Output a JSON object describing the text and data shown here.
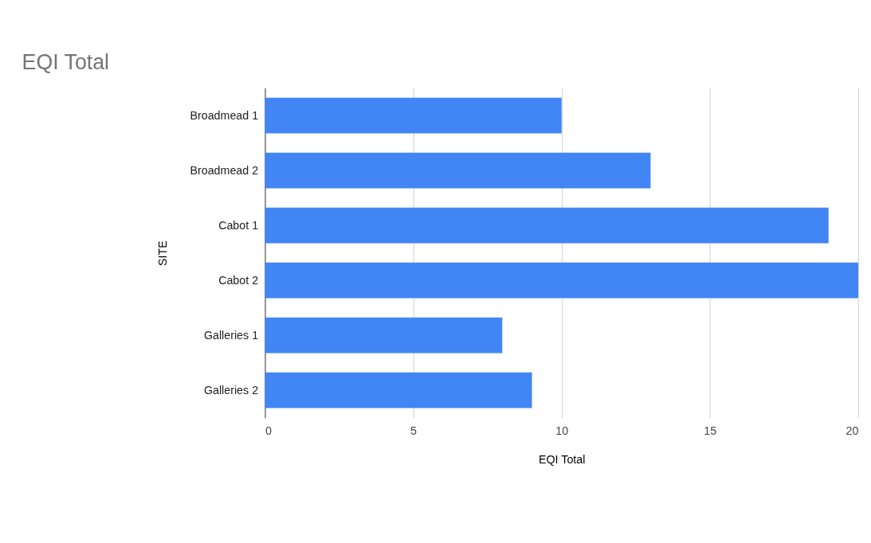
{
  "chart_data": {
    "type": "bar",
    "orientation": "horizontal",
    "title": "EQI Total",
    "xlabel": "EQI Total",
    "ylabel": "SITE",
    "categories": [
      "Broadmead 1",
      "Broadmead 2",
      "Cabot 1",
      "Cabot 2",
      "Galleries 1",
      "Galleries 2"
    ],
    "values": [
      10,
      13,
      19,
      20,
      8,
      9
    ],
    "color": "#4285f4",
    "xlim": [
      0,
      20
    ],
    "xticks": [
      0,
      5,
      10,
      15,
      20
    ],
    "grid": "x"
  }
}
